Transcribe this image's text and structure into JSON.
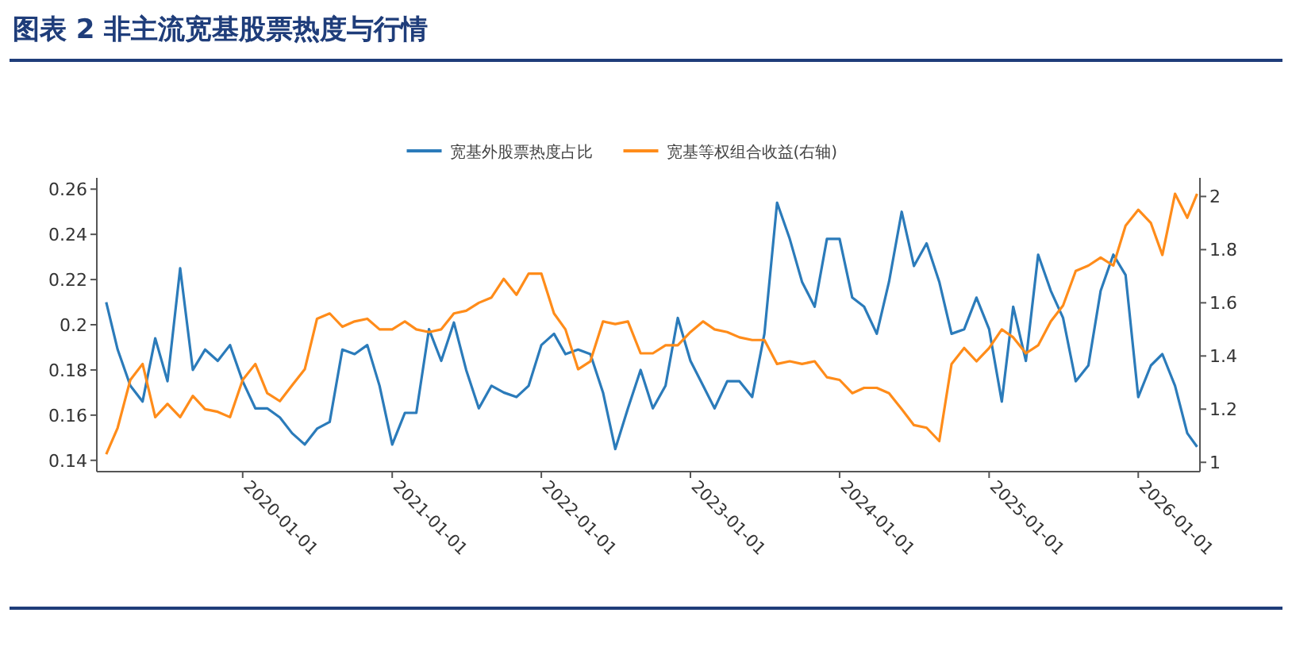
{
  "chart_data": {
    "type": "line",
    "title": "图表 2   非主流宽基股票热度与行情",
    "x": [
      "2019-02-01",
      "2019-03-01",
      "2019-04-01",
      "2019-05-01",
      "2019-06-01",
      "2019-07-01",
      "2019-08-01",
      "2019-09-01",
      "2019-10-01",
      "2019-11-01",
      "2019-12-01",
      "2020-01-01",
      "2020-02-01",
      "2020-03-01",
      "2020-04-01",
      "2020-05-01",
      "2020-06-01",
      "2020-07-01",
      "2020-08-01",
      "2020-09-01",
      "2020-10-01",
      "2020-11-01",
      "2020-12-01",
      "2021-01-01",
      "2021-02-01",
      "2021-03-01",
      "2021-04-01",
      "2021-05-01",
      "2021-06-01",
      "2021-07-01",
      "2021-08-01",
      "2021-09-01",
      "2021-10-01",
      "2021-11-01",
      "2021-12-01",
      "2022-01-01",
      "2022-02-01",
      "2022-03-01",
      "2022-04-01",
      "2022-05-01",
      "2022-06-01",
      "2022-07-01",
      "2022-08-01",
      "2022-09-01",
      "2022-10-01",
      "2022-11-01",
      "2022-12-01",
      "2023-01-01",
      "2023-02-01",
      "2023-03-01",
      "2023-04-01",
      "2023-05-01",
      "2023-06-01",
      "2023-07-01",
      "2023-08-01",
      "2023-09-01",
      "2023-10-01",
      "2023-11-01",
      "2023-12-01",
      "2024-01-01",
      "2024-02-01",
      "2024-03-01",
      "2024-04-01",
      "2024-05-01",
      "2024-06-01",
      "2024-07-01",
      "2024-08-01",
      "2024-09-01",
      "2024-10-01",
      "2024-11-01",
      "2024-12-01",
      "2025-01-01",
      "2025-02-01",
      "2025-03-01",
      "2025-04-01",
      "2025-05-01",
      "2025-06-01",
      "2025-07-01",
      "2025-08-01",
      "2025-09-01",
      "2025-10-01",
      "2025-11-01",
      "2025-12-01",
      "2026-01-01",
      "2026-02-01",
      "2026-03-01",
      "2026-04-01",
      "2026-05-01",
      "2026-05-25"
    ],
    "series": [
      {
        "name": "宽基外股票热度占比",
        "color": "#2b7bba",
        "values": [
          0.21,
          0.189,
          0.173,
          0.166,
          0.194,
          0.175,
          0.225,
          0.18,
          0.189,
          0.184,
          0.191,
          0.175,
          0.163,
          0.163,
          0.159,
          0.152,
          0.147,
          0.154,
          0.157,
          0.189,
          0.187,
          0.191,
          0.173,
          0.147,
          0.161,
          0.161,
          0.198,
          0.184,
          0.201,
          0.18,
          0.163,
          0.173,
          0.17,
          0.168,
          0.173,
          0.191,
          0.196,
          0.187,
          0.189,
          0.187,
          0.17,
          0.145,
          0.163,
          0.18,
          0.163,
          0.173,
          0.203,
          0.184,
          0.173,
          0.163,
          0.175,
          0.175,
          0.168,
          0.196,
          0.254,
          0.238,
          0.219,
          0.208,
          0.238,
          0.238,
          0.212,
          0.208,
          0.196,
          0.219,
          0.25,
          0.226,
          0.236,
          0.219,
          0.196,
          0.198,
          0.212,
          0.198,
          0.166,
          0.208,
          0.184,
          0.231,
          0.215,
          0.203,
          0.175,
          0.182,
          0.215,
          0.231,
          0.222,
          0.168,
          0.182,
          0.187,
          0.173,
          0.152,
          0.146
        ]
      },
      {
        "name": "宽基等权组合收益(右轴)",
        "color": "#ff8c1a",
        "axis": "y2",
        "values": [
          1.03,
          1.13,
          1.31,
          1.37,
          1.17,
          1.22,
          1.17,
          1.25,
          1.2,
          1.19,
          1.17,
          1.31,
          1.37,
          1.26,
          1.23,
          1.29,
          1.35,
          1.54,
          1.56,
          1.51,
          1.53,
          1.54,
          1.5,
          1.5,
          1.53,
          1.5,
          1.49,
          1.5,
          1.56,
          1.57,
          1.6,
          1.62,
          1.69,
          1.63,
          1.71,
          1.71,
          1.56,
          1.5,
          1.35,
          1.38,
          1.53,
          1.52,
          1.53,
          1.41,
          1.41,
          1.44,
          1.44,
          1.49,
          1.53,
          1.5,
          1.49,
          1.47,
          1.46,
          1.46,
          1.37,
          1.38,
          1.37,
          1.38,
          1.32,
          1.31,
          1.26,
          1.28,
          1.28,
          1.26,
          1.2,
          1.14,
          1.13,
          1.08,
          1.37,
          1.43,
          1.38,
          1.43,
          1.5,
          1.47,
          1.41,
          1.44,
          1.53,
          1.59,
          1.72,
          1.74,
          1.77,
          1.74,
          1.89,
          1.95,
          1.9,
          1.78,
          2.01,
          1.92,
          2.01
        ]
      }
    ],
    "xlim": [
      "2019-01-09",
      "2026-06-01"
    ],
    "xticks": [
      "2020-01-01",
      "2021-01-01",
      "2022-01-01",
      "2023-01-01",
      "2024-01-01",
      "2025-01-01",
      "2026-01-01"
    ],
    "ylim": [
      0.135,
      0.265
    ],
    "yticks": [
      0.14,
      0.16,
      0.18,
      {
        "value": 0.2,
        "label": "0.2"
      },
      0.22,
      0.24,
      0.26
    ],
    "y2lim": [
      0.965,
      2.07
    ],
    "y2ticks": [
      1,
      1.2,
      1.4,
      1.6,
      1.8,
      2
    ],
    "legend": "top",
    "grid": false,
    "marker": "none",
    "line_style": "solid"
  }
}
